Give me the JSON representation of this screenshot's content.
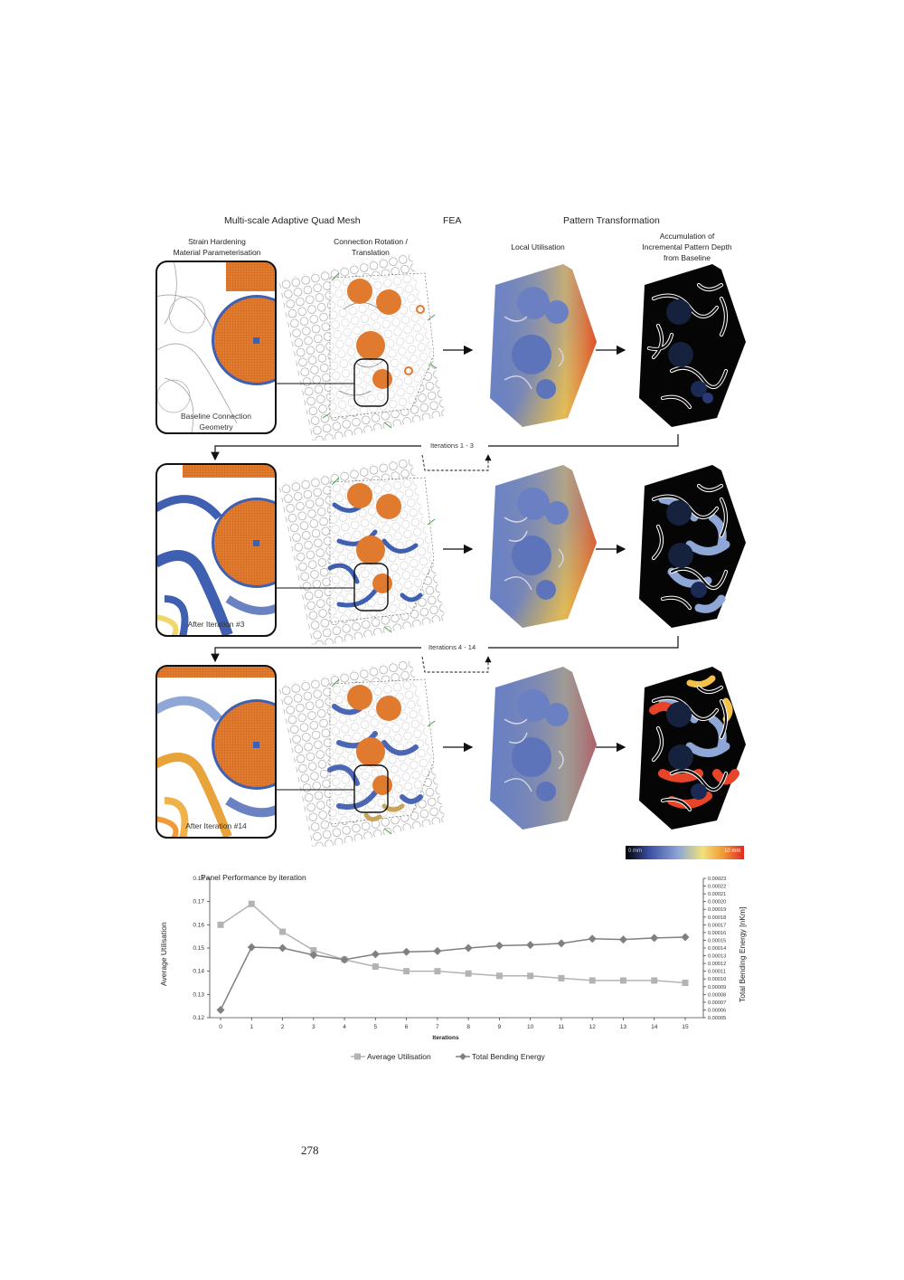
{
  "figure": {
    "headers": {
      "mesh": "Multi-scale Adaptive Quad Mesh",
      "fea": "FEA",
      "pattern": "Pattern Transformation"
    },
    "subheaders": {
      "strain": [
        "Strain Hardening",
        "Material Parameterisation"
      ],
      "connection": [
        "Connection Rotation /",
        "Translation"
      ],
      "local_util": "Local Utilisation",
      "accum": [
        "Accumulation of",
        "Incremental Pattern Depth",
        "from Baseline"
      ]
    },
    "rows": [
      {
        "caption": [
          "Baseline Connection",
          "Geometry"
        ]
      },
      {
        "caption": [
          "After Iteration #3"
        ]
      },
      {
        "caption": [
          "After Iteration #14"
        ]
      }
    ],
    "loops": [
      "Iterations 1 - 3",
      "Iterations 4 - 14"
    ],
    "colorbar": {
      "min": "0 mm",
      "max": "10 mm",
      "colors": [
        "#000000",
        "#3b4fa3",
        "#8fa7d6",
        "#f0e27a",
        "#f29a36",
        "#e02a20"
      ]
    }
  },
  "chart_data": {
    "type": "line",
    "title": "Panel Performance by iteration",
    "xlabel": "Iterations",
    "ylabel": "Average Utilisation",
    "y2label": "Total Bending Energy [nKm]",
    "x": [
      0,
      1,
      2,
      3,
      4,
      5,
      6,
      7,
      8,
      9,
      10,
      11,
      12,
      13,
      14,
      15
    ],
    "ylim": [
      0.12,
      0.18
    ],
    "yticks": [
      "0.18",
      "0.17",
      "0.16",
      "0.15",
      "0.14",
      "0.13",
      "0.12"
    ],
    "y2lim": [
      5e-05,
      0.00023
    ],
    "y2ticks": [
      "0.00023",
      "0.00022",
      "0.00021",
      "0.00020",
      "0.00019",
      "0.00018",
      "0.00017",
      "0.00016",
      "0.00015",
      "0.00014",
      "0.00013",
      "0.00012",
      "0.00011",
      "0.00010",
      "0.00009",
      "0.00008",
      "0.00007",
      "0.00006",
      "0.00005"
    ],
    "series": [
      {
        "name": "Average Utilisation",
        "axis": "left",
        "marker": "square",
        "color": "#b3b3b3",
        "values": [
          0.16,
          0.169,
          0.157,
          0.149,
          0.145,
          0.142,
          0.14,
          0.14,
          0.139,
          0.138,
          0.138,
          0.137,
          0.136,
          0.136,
          0.136,
          0.135
        ]
      },
      {
        "name": "Total Bending Energy",
        "axis": "right",
        "marker": "diamond",
        "color": "#808080",
        "values": [
          6e-05,
          0.000141,
          0.00014,
          0.000131,
          0.000125,
          0.000132,
          0.000135,
          0.000136,
          0.00014,
          0.000143,
          0.000144,
          0.000146,
          0.000152,
          0.000151,
          0.000153,
          0.000154
        ]
      }
    ],
    "legend": "bottom"
  },
  "page": {
    "number": "278"
  }
}
